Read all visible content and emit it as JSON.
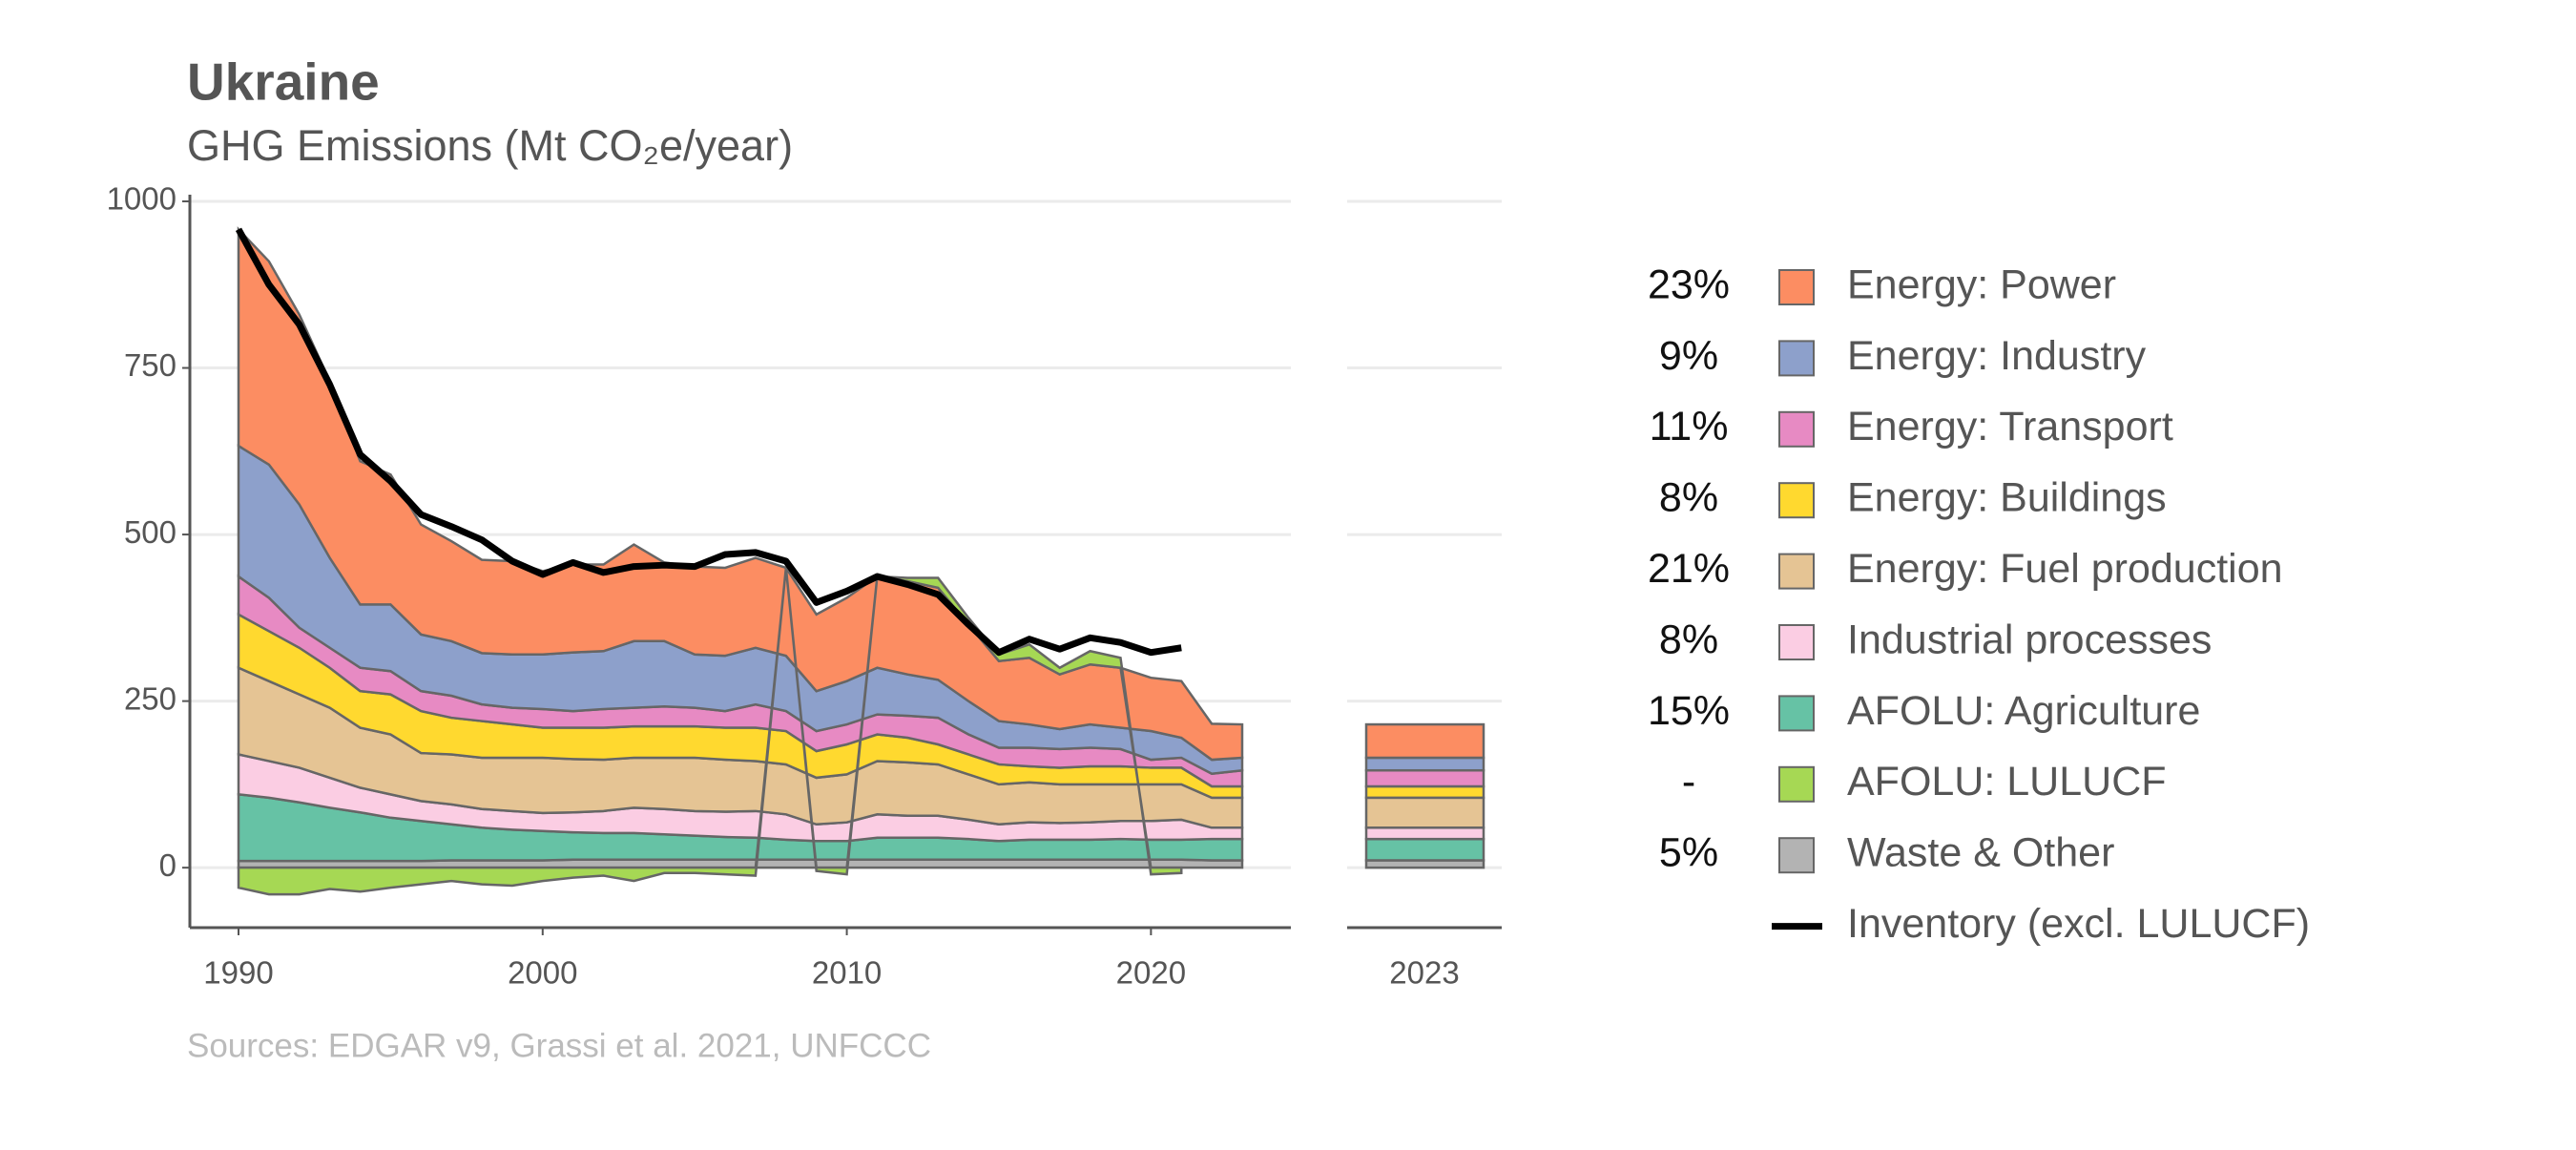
{
  "chart_data": {
    "type": "stacked-area",
    "title": "Ukraine",
    "subtitle": "GHG Emissions (Mt CO₂e/year)",
    "source": "Sources: EDGAR v9, Grassi et al. 2021, UNFCCC",
    "x": [
      1990,
      1991,
      1992,
      1993,
      1994,
      1995,
      1996,
      1997,
      1998,
      1999,
      2000,
      2001,
      2002,
      2003,
      2004,
      2005,
      2006,
      2007,
      2008,
      2009,
      2010,
      2011,
      2012,
      2013,
      2014,
      2015,
      2016,
      2017,
      2018,
      2019,
      2020,
      2021,
      2022,
      2023
    ],
    "xlim": [
      1988.4,
      2024.6
    ],
    "xticks": [
      1990,
      2000,
      2010,
      2020
    ],
    "ylim": [
      -90,
      1010
    ],
    "yticks": [
      0,
      250,
      500,
      750,
      1000
    ],
    "grid": true,
    "bar_label": "2023",
    "series": [
      {
        "name": "Energy: Power",
        "share": "23%",
        "color": "#fc8d62",
        "values": [
          325,
          305,
          285,
          265,
          215,
          195,
          165,
          150,
          140,
          140,
          125,
          132,
          130,
          145,
          118,
          132,
          132,
          135,
          132,
          115,
          125,
          137,
          140,
          138,
          115,
          90,
          100,
          82,
          90,
          90,
          80,
          85,
          54,
          50
        ]
      },
      {
        "name": "Energy: Industry",
        "share": "9%",
        "color": "#8da0cb",
        "values": [
          196,
          200,
          185,
          135,
          95,
          100,
          85,
          82,
          77,
          80,
          82,
          88,
          87,
          100,
          98,
          80,
          83,
          85,
          83,
          60,
          65,
          70,
          62,
          57,
          50,
          40,
          35,
          30,
          35,
          32,
          43,
          30,
          21,
          19
        ]
      },
      {
        "name": "Energy: Transport",
        "share": "11%",
        "color": "#e78ac3",
        "values": [
          57,
          50,
          30,
          30,
          35,
          35,
          30,
          33,
          25,
          25,
          28,
          25,
          28,
          28,
          30,
          28,
          25,
          35,
          30,
          30,
          30,
          30,
          33,
          40,
          30,
          25,
          28,
          28,
          28,
          26,
          12,
          15,
          19,
          24
        ]
      },
      {
        "name": "Energy: Buildings",
        "share": "8%",
        "color": "#ffd92f",
        "values": [
          80,
          75,
          70,
          60,
          55,
          60,
          63,
          55,
          55,
          50,
          45,
          47,
          48,
          47,
          47,
          47,
          48,
          50,
          50,
          40,
          45,
          40,
          37,
          30,
          30,
          30,
          24,
          25,
          27,
          27,
          25,
          25,
          17,
          17
        ]
      },
      {
        "name": "Energy: Fuel production",
        "share": "21%",
        "color": "#e5c494",
        "values": [
          130,
          120,
          110,
          105,
          90,
          90,
          72,
          75,
          77,
          80,
          83,
          80,
          77,
          75,
          77,
          80,
          78,
          75,
          75,
          70,
          72,
          80,
          80,
          77,
          68,
          60,
          60,
          58,
          57,
          55,
          55,
          53,
          45,
          45
        ]
      },
      {
        "name": "Industrial processes",
        "share": "8%",
        "color": "#fbcde3",
        "values": [
          60,
          55,
          52,
          45,
          37,
          35,
          30,
          30,
          28,
          28,
          27,
          30,
          33,
          38,
          38,
          37,
          38,
          40,
          38,
          25,
          28,
          35,
          33,
          33,
          29,
          25,
          26,
          25,
          26,
          27,
          28,
          30,
          17,
          17
        ]
      },
      {
        "name": "AFOLU: Agriculture",
        "share": "15%",
        "color": "#66c2a5",
        "values": [
          100,
          95,
          88,
          80,
          73,
          65,
          60,
          54,
          49,
          46,
          44,
          41,
          40,
          40,
          38,
          36,
          34,
          33,
          30,
          28,
          28,
          33,
          33,
          33,
          31,
          28,
          30,
          30,
          30,
          31,
          30,
          30,
          32,
          32
        ]
      },
      {
        "name": "AFOLU: LULUCF",
        "share": "-",
        "color": "#a6d854",
        "values": [
          -30,
          -40,
          -40,
          -32,
          -36,
          -30,
          -25,
          -20,
          -25,
          -27,
          -20,
          -15,
          -12,
          -20,
          -8,
          -8,
          -10,
          -12,
          0,
          -5,
          -10,
          0,
          5,
          15,
          10,
          10,
          20,
          10,
          20,
          15,
          -10,
          -8,
          null,
          null
        ]
      },
      {
        "name": "Waste & Other",
        "share": "5%",
        "color": "#b3b3b3",
        "values": [
          10,
          10,
          10,
          10,
          10,
          10,
          10,
          11,
          11,
          11,
          11,
          12,
          12,
          12,
          12,
          12,
          12,
          12,
          12,
          12,
          12,
          12,
          12,
          12,
          12,
          12,
          12,
          12,
          12,
          12,
          12,
          12,
          11,
          11
        ]
      }
    ],
    "line": {
      "name": "Inventory (excl. LULUCF)",
      "color": "#000000",
      "values": [
        958,
        875,
        815,
        725,
        620,
        580,
        530,
        512,
        492,
        460,
        440,
        458,
        443,
        452,
        454,
        452,
        470,
        473,
        460,
        398,
        415,
        437,
        425,
        410,
        365,
        323,
        343,
        328,
        345,
        338,
        323,
        330,
        null,
        null
      ]
    }
  }
}
